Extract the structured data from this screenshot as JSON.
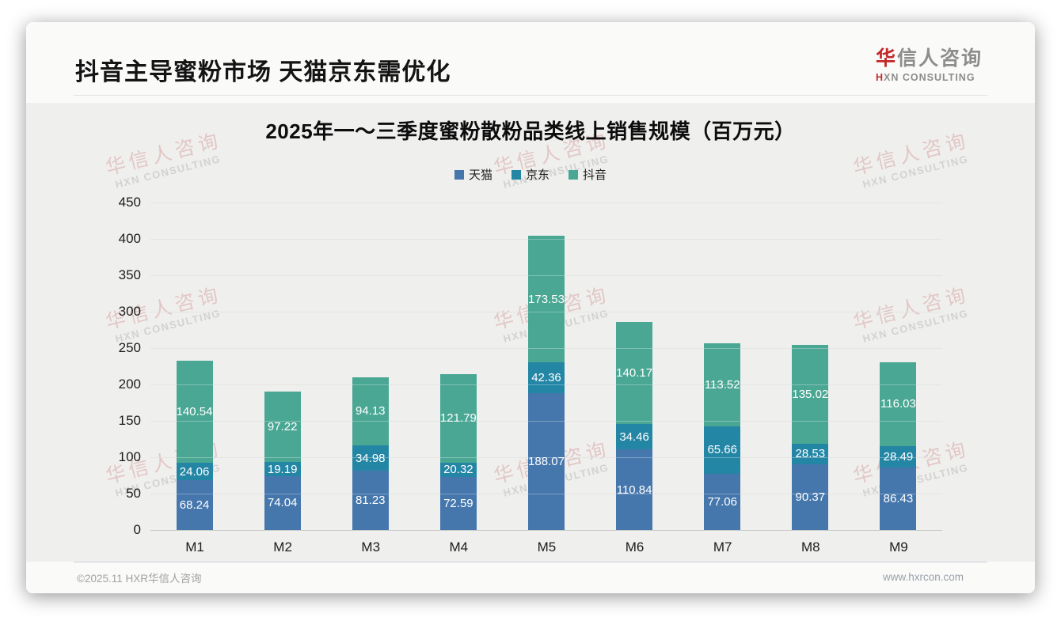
{
  "page": {
    "title": "抖音主导蜜粉市场 天猫京东需优化",
    "logo": {
      "cn_first": "华",
      "cn_rest": "信人咨询",
      "en_first": "H",
      "en_rest": "XN CONSULTING"
    },
    "watermark": {
      "line1": "华信人咨询",
      "line2": "HXN CONSULTING"
    },
    "footer": {
      "left": "©2025.11 HXR华信人咨询",
      "right": "www.hxrcon.com"
    }
  },
  "chart_data": {
    "type": "bar",
    "stacked": true,
    "title": "2025年一～三季度蜜粉散粉品类线上销售规模（百万元）",
    "categories": [
      "M1",
      "M2",
      "M3",
      "M4",
      "M5",
      "M6",
      "M7",
      "M8",
      "M9"
    ],
    "series": [
      {
        "name": "天猫",
        "color": "#4577ad",
        "values": [
          68.24,
          74.04,
          81.23,
          72.59,
          188.07,
          110.84,
          77.06,
          90.37,
          86.43
        ]
      },
      {
        "name": "京东",
        "color": "#2386a5",
        "values": [
          24.06,
          19.19,
          34.98,
          20.32,
          42.36,
          34.46,
          65.66,
          28.53,
          28.49
        ]
      },
      {
        "name": "抖音",
        "color": "#4aa794",
        "values": [
          140.54,
          97.22,
          94.13,
          121.79,
          173.53,
          140.17,
          113.52,
          135.02,
          116.03
        ]
      }
    ],
    "totals": [
      232.84,
      190.45,
      210.34,
      214.7,
      403.96,
      285.47,
      256.24,
      253.92,
      230.95
    ],
    "ylim": [
      0,
      450
    ],
    "ytick_step": 50,
    "grid": true,
    "legend_position": "top",
    "value_labels": "inside-center",
    "label_color": "#ffffff"
  }
}
